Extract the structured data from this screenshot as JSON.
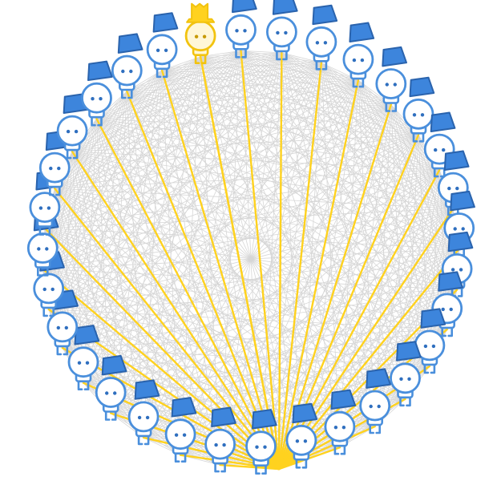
{
  "diagram": {
    "type": "complete-graph",
    "node_count": 32,
    "highlighted_node_index": 0,
    "node_kinds": {
      "highlighted": "yellow-figure-top-hat",
      "normal": "blue-figure-bucket-hat"
    },
    "colors": {
      "background": "#ffffff",
      "mesh_edges": "#d6d6d6",
      "highlight_edges": "#ffd21f",
      "blue_fill": "#ffffff",
      "blue_stroke": "#4a8fdc",
      "blue_hat": "#3d85dc",
      "blue_hat_stroke": "#2a63ad",
      "blue_eyes": "#2f6fbf",
      "yellow_fill": "#fff7d6",
      "yellow_stroke": "#f2c30f",
      "yellow_hat": "#ffd21f",
      "yellow_eyes": "#c79a00"
    }
  }
}
